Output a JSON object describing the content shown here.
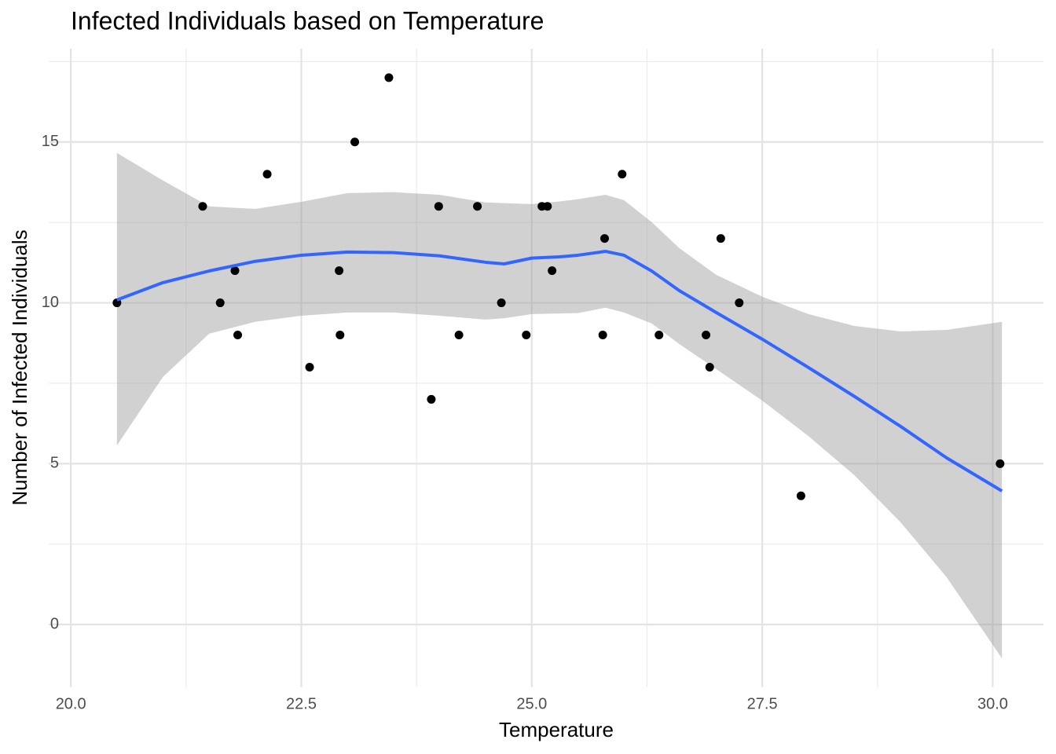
{
  "chart_data": {
    "type": "scatter",
    "title": "Infected Individuals based on Temperature",
    "x_label": "Temperature",
    "y_label": "Number of Infected Individuals",
    "x": [
      20.5,
      21.43,
      21.62,
      21.78,
      21.81,
      22.13,
      22.59,
      22.91,
      22.92,
      23.08,
      23.45,
      23.91,
      23.99,
      24.21,
      24.41,
      24.67,
      24.94,
      25.11,
      25.17,
      25.22,
      25.77,
      25.79,
      25.98,
      26.38,
      26.89,
      26.93,
      27.05,
      27.25,
      27.92,
      30.08
    ],
    "y": [
      10,
      13,
      10,
      11,
      9,
      14,
      8,
      11,
      9,
      15,
      17,
      7,
      13,
      9,
      13,
      10,
      9,
      13,
      13,
      11,
      9,
      12,
      14,
      9,
      9,
      8,
      12,
      10,
      4,
      5
    ],
    "color": "#000000",
    "smooth": {
      "x": [
        20.5,
        21.0,
        21.5,
        22.0,
        22.5,
        23.0,
        23.5,
        24.0,
        24.5,
        24.7,
        25.0,
        25.3,
        25.5,
        25.8,
        26.0,
        26.3,
        26.6,
        27.0,
        27.5,
        28.0,
        28.5,
        29.0,
        29.5,
        30.1
      ],
      "y": [
        10.09,
        10.63,
        10.99,
        11.29,
        11.48,
        11.58,
        11.56,
        11.46,
        11.26,
        11.21,
        11.39,
        11.43,
        11.48,
        11.6,
        11.48,
        10.99,
        10.38,
        9.7,
        8.87,
        7.99,
        7.09,
        6.16,
        5.18,
        4.15
      ],
      "upper": [
        14.66,
        13.8,
        13.0,
        12.92,
        13.14,
        13.41,
        13.44,
        13.36,
        13.12,
        13.1,
        13.07,
        13.15,
        13.22,
        13.36,
        13.19,
        12.51,
        11.7,
        10.87,
        10.19,
        9.65,
        9.28,
        9.11,
        9.16,
        9.41
      ],
      "lower": [
        5.57,
        7.7,
        9.04,
        9.41,
        9.6,
        9.7,
        9.7,
        9.6,
        9.48,
        9.52,
        9.65,
        9.67,
        9.68,
        9.85,
        9.7,
        9.36,
        8.72,
        7.94,
        6.96,
        5.86,
        4.64,
        3.18,
        1.47,
        -1.05
      ],
      "color": "#3366ff",
      "band_color": "#999999"
    },
    "xlim": [
      19.76,
      30.55
    ],
    "ylim": [
      -1.95,
      17.9
    ],
    "xticks": [
      {
        "value": 20,
        "label": "20.0"
      },
      22.5,
      {
        "value": 25,
        "label": "25.0"
      },
      27.5,
      {
        "value": 30,
        "label": "30.0"
      }
    ],
    "yticks": [
      0,
      5,
      10,
      15
    ],
    "x_minor_ticks": [
      21.25,
      23.75,
      26.25,
      28.75
    ],
    "y_minor_ticks": [
      2.5,
      7.5,
      12.5,
      17.5
    ],
    "grid": true
  }
}
